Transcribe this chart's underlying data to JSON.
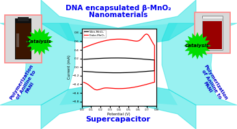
{
  "title_line1": "DNA encapsulated β-MnO₂",
  "title_line2": "Nanomaterials",
  "title_color": "#0000EE",
  "supercapacitor_label": "Supercapacitor",
  "supercapacitor_color": "#0000EE",
  "catalysis_color": "#00DD00",
  "catalysis_text": "Catalysis",
  "bg_color": "#FFFFFF",
  "ribbon_color": "#00DDDD",
  "cv_black_label": "Wire-MnO₂",
  "cv_red_label": "Flake-MnO₂",
  "xlabel": "Potential (V)",
  "ylabel": "Current (mA)",
  "xlim": [
    0.0,
    0.8
  ],
  "ylim": [
    -0.9,
    0.9
  ],
  "left_text": "Polymerization\nof Aniline to\nPANI",
  "right_text": "Polymerization\nof Aniline to\nPANI",
  "text_color": "#0000CC"
}
